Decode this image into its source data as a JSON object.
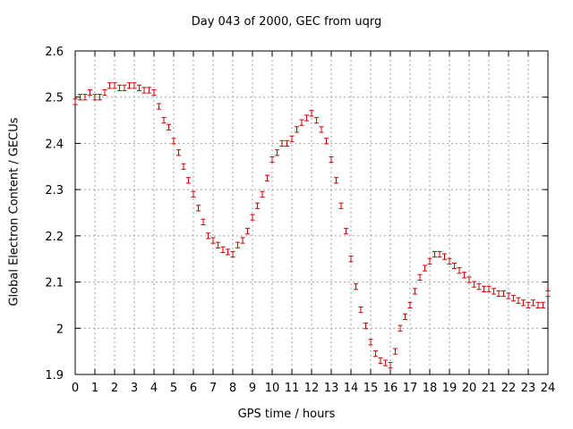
{
  "chart_data": {
    "type": "scatter",
    "title": "Day 043 of 2000, GEC from uqrg",
    "xlabel": "GPS time / hours",
    "ylabel": "Global Electron Content / GECUs",
    "xlim": [
      0,
      24
    ],
    "ylim": [
      1.9,
      2.6
    ],
    "xticks": [
      "0",
      "1",
      "2",
      "3",
      "4",
      "5",
      "6",
      "7",
      "8",
      "9",
      "10",
      "11",
      "12",
      "13",
      "14",
      "15",
      "16",
      "17",
      "18",
      "19",
      "20",
      "21",
      "22",
      "23",
      "24"
    ],
    "yticks": [
      "1.9",
      "2",
      "2.1",
      "2.2",
      "2.3",
      "2.4",
      "2.5",
      "2.6"
    ],
    "grid": true,
    "error_bars": true,
    "marker_color": "#cc0000",
    "error_half_width": 0.006,
    "series": [
      {
        "x": [
          0,
          0.25,
          0.5,
          0.75,
          1,
          1.25,
          1.5,
          1.75,
          2,
          2.25,
          2.5,
          2.75,
          3,
          3.25,
          3.5,
          3.75,
          4,
          4.25,
          4.5,
          4.75,
          5,
          5.25,
          5.5,
          5.75,
          6,
          6.25,
          6.5,
          6.75,
          7,
          7.25,
          7.5,
          7.75,
          8,
          8.25,
          8.5,
          8.75,
          9,
          9.25,
          9.5,
          9.75,
          10,
          10.25,
          10.5,
          10.75,
          11,
          11.25,
          11.5,
          11.75,
          12,
          12.25,
          12.5,
          12.75,
          13,
          13.25,
          13.5,
          13.75,
          14,
          14.25,
          14.5,
          14.75,
          15,
          15.25,
          15.5,
          15.75,
          16,
          16.25,
          16.5,
          16.75,
          17,
          17.25,
          17.5,
          17.75,
          18,
          18.25,
          18.5,
          18.75,
          19,
          19.25,
          19.5,
          19.75,
          20,
          20.25,
          20.5,
          20.75,
          21,
          21.25,
          21.5,
          21.75,
          22,
          22.25,
          22.5,
          22.75,
          23,
          23.25,
          23.5,
          23.75,
          24
        ],
        "y": [
          2.49,
          2.5,
          2.5,
          2.51,
          2.5,
          2.5,
          2.51,
          2.525,
          2.525,
          2.52,
          2.52,
          2.525,
          2.525,
          2.52,
          2.515,
          2.515,
          2.51,
          2.48,
          2.45,
          2.435,
          2.405,
          2.38,
          2.35,
          2.32,
          2.29,
          2.26,
          2.23,
          2.2,
          2.19,
          2.18,
          2.17,
          2.165,
          2.16,
          2.18,
          2.19,
          2.21,
          2.24,
          2.265,
          2.29,
          2.325,
          2.365,
          2.38,
          2.4,
          2.4,
          2.41,
          2.43,
          2.445,
          2.455,
          2.465,
          2.45,
          2.43,
          2.405,
          2.365,
          2.32,
          2.265,
          2.21,
          2.15,
          2.09,
          2.04,
          2.005,
          1.97,
          1.945,
          1.93,
          1.925,
          1.92,
          1.95,
          2.0,
          2.025,
          2.05,
          2.08,
          2.11,
          2.13,
          2.145,
          2.16,
          2.16,
          2.155,
          2.145,
          2.135,
          2.125,
          2.115,
          2.105,
          2.095,
          2.09,
          2.085,
          2.085,
          2.08,
          2.075,
          2.075,
          2.07,
          2.065,
          2.06,
          2.055,
          2.05,
          2.055,
          2.05,
          2.05,
          2.075
        ]
      }
    ]
  }
}
